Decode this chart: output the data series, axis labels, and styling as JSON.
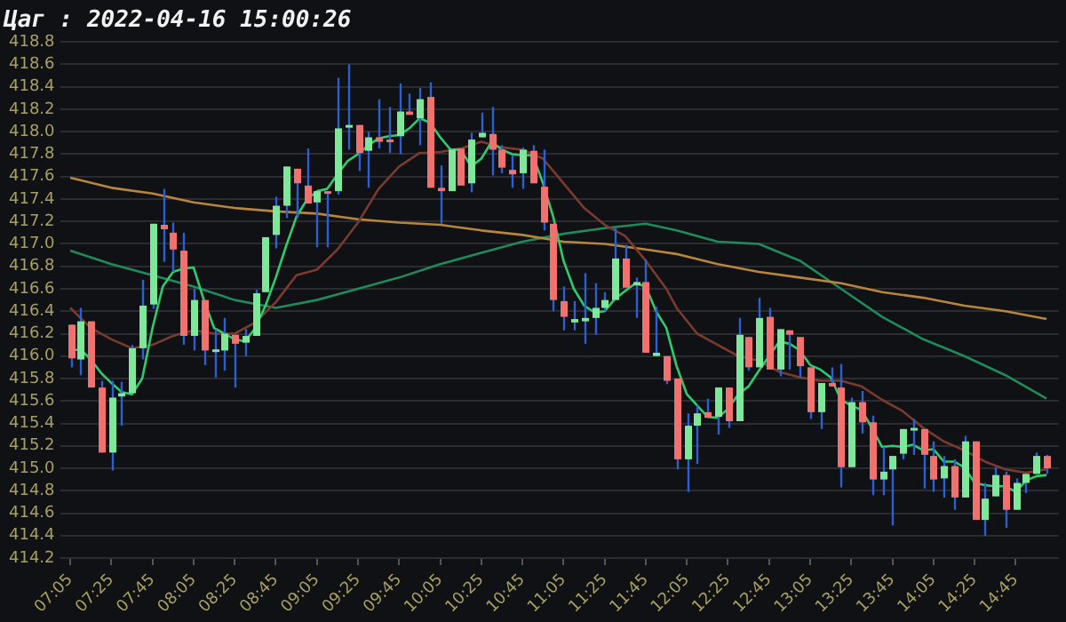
{
  "chart_data": {
    "type": "candlestick",
    "title": "Цаг : 2022-04-16 15:00:26",
    "x": [
      7.0833,
      7.1667,
      7.25,
      7.3333,
      7.4167,
      7.5,
      7.5833,
      7.6667,
      7.75,
      7.8333,
      7.9167,
      8,
      8.0833,
      8.1667,
      8.25,
      8.3333,
      8.4167,
      8.5,
      8.5833,
      8.6667,
      8.75,
      8.8333,
      8.9167,
      9,
      9.0833,
      9.1667,
      9.25,
      9.3333,
      9.4167,
      9.5,
      9.5833,
      9.6667,
      9.75,
      9.8333,
      9.9167,
      10,
      10.0833,
      10.1667,
      10.25,
      10.3333,
      10.4167,
      10.5,
      10.5833,
      10.6667,
      10.75,
      10.8333,
      10.9167,
      11,
      11.0833,
      11.1667,
      11.25,
      11.3333,
      11.4167,
      11.5,
      11.5833,
      11.6667,
      11.75,
      11.8333,
      11.9167,
      12,
      12.0833,
      12.1667,
      12.25,
      12.3333,
      12.4167,
      12.5,
      12.5833,
      12.6667,
      12.75,
      12.8333,
      12.9167,
      13,
      13.0833,
      13.1667,
      13.25,
      13.3333,
      13.4167,
      13.5,
      13.5833,
      13.6667,
      13.75,
      13.8333,
      13.9167,
      14,
      14.0833,
      14.1667,
      14.25,
      14.3333,
      14.4167,
      14.5,
      14.5833,
      14.6667,
      14.75,
      14.8333,
      14.9167,
      15
    ],
    "ohlc": [
      [
        416.28,
        416.28,
        415.9,
        415.98
      ],
      [
        415.97,
        416.43,
        415.83,
        416.31
      ],
      [
        416.31,
        416.31,
        415.72,
        415.72
      ],
      [
        415.72,
        415.78,
        415.14,
        415.14
      ],
      [
        415.14,
        415.78,
        414.98,
        415.63
      ],
      [
        415.64,
        415.77,
        415.38,
        415.67
      ],
      [
        415.67,
        416.1,
        415.67,
        416.07
      ],
      [
        416.07,
        416.68,
        415.97,
        416.45
      ],
      [
        416.46,
        417.18,
        416.42,
        417.18
      ],
      [
        417.17,
        417.49,
        416.84,
        417.13
      ],
      [
        417.1,
        417.19,
        416.75,
        416.95
      ],
      [
        416.94,
        417.1,
        416.1,
        416.18
      ],
      [
        416.18,
        416.6,
        416.05,
        416.5
      ],
      [
        416.5,
        416.5,
        415.92,
        416.05
      ],
      [
        416.04,
        416.24,
        415.81,
        416.06
      ],
      [
        416.05,
        416.34,
        415.87,
        416.2
      ],
      [
        416.19,
        416.19,
        415.72,
        416.11
      ],
      [
        416.12,
        416.24,
        416.0,
        416.18
      ],
      [
        416.18,
        416.59,
        416.18,
        416.56
      ],
      [
        416.57,
        417.06,
        416.57,
        417.06
      ],
      [
        417.08,
        417.42,
        416.96,
        417.34
      ],
      [
        417.34,
        417.69,
        417.23,
        417.69
      ],
      [
        417.67,
        417.67,
        417.23,
        417.54
      ],
      [
        417.52,
        417.85,
        417.36,
        417.36
      ],
      [
        417.37,
        417.47,
        416.97,
        417.47
      ],
      [
        417.47,
        417.47,
        416.97,
        417.45
      ],
      [
        417.47,
        418.48,
        417.44,
        418.03
      ],
      [
        418.04,
        418.6,
        417.84,
        418.06
      ],
      [
        418.06,
        418.06,
        417.65,
        417.81
      ],
      [
        417.83,
        418.0,
        417.5,
        417.95
      ],
      [
        417.95,
        418.29,
        417.85,
        417.91
      ],
      [
        417.93,
        418.22,
        417.81,
        417.91
      ],
      [
        417.96,
        418.43,
        417.8,
        418.18
      ],
      [
        418.18,
        418.34,
        418.15,
        418.15
      ],
      [
        418.12,
        418.39,
        417.88,
        418.29
      ],
      [
        418.31,
        418.44,
        417.5,
        417.5
      ],
      [
        417.5,
        417.7,
        417.18,
        417.47
      ],
      [
        417.47,
        417.84,
        417.47,
        417.84
      ],
      [
        417.85,
        417.85,
        417.52,
        417.52
      ],
      [
        417.54,
        417.99,
        417.46,
        417.93
      ],
      [
        417.95,
        418.17,
        417.95,
        417.99
      ],
      [
        417.98,
        418.22,
        417.61,
        417.84
      ],
      [
        417.84,
        417.88,
        417.63,
        417.68
      ],
      [
        417.66,
        417.79,
        417.5,
        417.62
      ],
      [
        417.63,
        417.86,
        417.49,
        417.84
      ],
      [
        417.83,
        417.88,
        417.54,
        417.54
      ],
      [
        417.51,
        417.84,
        417.12,
        417.19
      ],
      [
        417.18,
        417.18,
        416.4,
        416.5
      ],
      [
        416.49,
        416.62,
        416.23,
        416.35
      ],
      [
        416.3,
        416.49,
        416.23,
        416.33
      ],
      [
        416.31,
        416.74,
        416.11,
        416.34
      ],
      [
        416.34,
        416.65,
        416.19,
        416.43
      ],
      [
        416.43,
        416.57,
        416.4,
        416.5
      ],
      [
        416.5,
        417.14,
        416.5,
        416.87
      ],
      [
        416.87,
        416.99,
        416.61,
        416.61
      ],
      [
        416.63,
        416.7,
        416.34,
        416.66
      ],
      [
        416.66,
        416.86,
        416.03,
        416.03
      ],
      [
        416.0,
        416.44,
        416.0,
        416.03
      ],
      [
        416.0,
        416.0,
        415.75,
        415.78
      ],
      [
        415.8,
        415.8,
        414.99,
        415.08
      ],
      [
        415.08,
        415.49,
        414.79,
        415.38
      ],
      [
        415.38,
        415.56,
        415.04,
        415.49
      ],
      [
        415.5,
        415.62,
        415.45,
        415.45
      ],
      [
        415.46,
        415.72,
        415.3,
        415.72
      ],
      [
        415.72,
        415.72,
        415.36,
        415.42
      ],
      [
        415.42,
        416.34,
        415.42,
        416.19
      ],
      [
        416.17,
        416.17,
        415.87,
        415.9
      ],
      [
        415.9,
        416.52,
        415.9,
        416.34
      ],
      [
        416.35,
        416.43,
        415.88,
        415.88
      ],
      [
        415.88,
        416.24,
        415.82,
        416.24
      ],
      [
        416.23,
        416.23,
        415.88,
        416.19
      ],
      [
        416.17,
        416.17,
        415.81,
        415.91
      ],
      [
        415.9,
        415.9,
        415.44,
        415.5
      ],
      [
        415.5,
        415.76,
        415.35,
        415.76
      ],
      [
        415.76,
        415.9,
        415.73,
        415.73
      ],
      [
        415.72,
        415.93,
        414.83,
        415.01
      ],
      [
        415.01,
        415.63,
        415.01,
        415.59
      ],
      [
        415.59,
        415.69,
        415.31,
        415.41
      ],
      [
        415.41,
        415.47,
        414.76,
        414.9
      ],
      [
        414.9,
        415.19,
        414.76,
        414.97
      ],
      [
        414.99,
        415.11,
        414.49,
        415.11
      ],
      [
        415.13,
        415.35,
        415.08,
        415.35
      ],
      [
        415.34,
        415.44,
        415.12,
        415.36
      ],
      [
        415.35,
        415.35,
        414.82,
        415.12
      ],
      [
        415.11,
        415.24,
        414.79,
        414.9
      ],
      [
        414.91,
        415.11,
        414.74,
        415.02
      ],
      [
        415.02,
        415.08,
        414.63,
        414.74
      ],
      [
        414.74,
        415.29,
        414.74,
        415.24
      ],
      [
        415.24,
        415.24,
        414.54,
        414.54
      ],
      [
        414.54,
        414.87,
        414.4,
        414.73
      ],
      [
        414.75,
        415.01,
        414.75,
        414.94
      ],
      [
        414.94,
        414.97,
        414.47,
        414.63
      ],
      [
        414.63,
        414.91,
        414.63,
        414.87
      ],
      [
        414.87,
        414.95,
        414.78,
        414.95
      ],
      [
        414.95,
        415.14,
        414.95,
        415.11
      ],
      [
        415.11,
        415.12,
        414.95,
        415.0
      ]
    ],
    "series": [
      {
        "type": "line",
        "color": "#2ecc71",
        "values": [
          416.05,
          416.06,
          415.97,
          415.85,
          415.76,
          415.68,
          415.66,
          415.8,
          416.25,
          416.62,
          416.75,
          416.78,
          416.79,
          416.5,
          416.25,
          416.2,
          416.15,
          416.13,
          416.25,
          416.45,
          416.7,
          416.98,
          417.24,
          417.39,
          417.47,
          417.49,
          417.62,
          417.74,
          417.8,
          417.88,
          417.94,
          417.96,
          417.97,
          418.03,
          418.12,
          418.08,
          417.95,
          417.84,
          417.84,
          417.69,
          417.76,
          417.91,
          417.84,
          417.8,
          417.79,
          417.79,
          417.54,
          417.24,
          416.85,
          416.6,
          416.45,
          416.39,
          416.4,
          416.51,
          416.58,
          416.65,
          416.62,
          416.4,
          416.25,
          415.91,
          415.66,
          415.56,
          415.46,
          415.45,
          415.53,
          415.66,
          415.73,
          415.87,
          416.0,
          416.13,
          416.11,
          416.05,
          415.92,
          415.88,
          415.81,
          415.61,
          415.56,
          415.52,
          415.36,
          415.19,
          415.2,
          415.19,
          415.21,
          415.16,
          415.17,
          415.06,
          415.06,
          415.01,
          414.87,
          414.85,
          414.84,
          414.84,
          414.79,
          414.89,
          414.93,
          414.94
        ]
      },
      {
        "type": "line",
        "color": "#7a3b2e",
        "x": [
          7.0833,
          7.25,
          7.4167,
          7.5833,
          7.75,
          7.9167,
          8.0833,
          8.25,
          8.4167,
          8.5833,
          8.75,
          8.9167,
          9.0833,
          9.25,
          9.4167,
          9.5833,
          9.75,
          9.9167,
          10.0833,
          10.25,
          10.4167,
          10.5833,
          10.75,
          10.9167,
          11.0833,
          11.25,
          11.4167,
          11.5833,
          11.75,
          11.9167,
          12,
          12.1667,
          12.3333,
          12.5,
          12.6667,
          12.8333,
          13,
          13.1667,
          13.3333,
          13.5,
          13.6667,
          13.8333,
          14,
          14.1667,
          14.3333,
          14.5,
          14.6667,
          14.8333,
          15
        ],
        "values": [
          416.43,
          416.25,
          416.15,
          416.07,
          416.1,
          416.18,
          416.23,
          416.2,
          416.2,
          416.3,
          416.48,
          416.72,
          416.77,
          416.95,
          417.19,
          417.49,
          417.69,
          417.81,
          417.82,
          417.85,
          417.91,
          417.86,
          417.84,
          417.76,
          417.54,
          417.32,
          417.17,
          417.07,
          416.85,
          416.6,
          416.43,
          416.2,
          416.1,
          416.0,
          415.96,
          415.86,
          415.81,
          415.78,
          415.78,
          415.73,
          415.61,
          415.51,
          415.36,
          415.24,
          415.16,
          415.06,
          414.99,
          414.96,
          414.99
        ]
      },
      {
        "type": "line",
        "color": "#b8863b",
        "x": [
          7.0833,
          7.4167,
          7.75,
          8.0833,
          8.4167,
          8.75,
          9.0833,
          9.4167,
          9.75,
          10.0833,
          10.4167,
          10.75,
          11.0833,
          11.4167,
          11.75,
          12,
          12.3333,
          12.6667,
          13,
          13.3333,
          13.6667,
          14,
          14.3333,
          14.6667,
          15
        ],
        "values": [
          417.59,
          417.5,
          417.45,
          417.37,
          417.32,
          417.29,
          417.27,
          417.22,
          417.19,
          417.17,
          417.12,
          417.08,
          417.02,
          417.0,
          416.95,
          416.91,
          416.82,
          416.75,
          416.7,
          416.65,
          416.57,
          416.52,
          416.45,
          416.4,
          416.33
        ]
      },
      {
        "type": "line",
        "color": "#1f8a5a",
        "x": [
          7.0833,
          7.4167,
          7.75,
          8.0833,
          8.4167,
          8.75,
          9.0833,
          9.4167,
          9.75,
          10.0833,
          10.4167,
          10.75,
          11.0833,
          11.4167,
          11.75,
          12,
          12.3333,
          12.6667,
          13,
          13.3333,
          13.6667,
          14,
          14.3333,
          14.6667,
          15
        ],
        "values": [
          416.94,
          416.82,
          416.72,
          416.62,
          416.5,
          416.43,
          416.5,
          416.6,
          416.7,
          416.82,
          416.92,
          417.02,
          417.09,
          417.14,
          417.18,
          417.12,
          417.02,
          417.0,
          416.85,
          416.6,
          416.35,
          416.15,
          416.0,
          415.83,
          415.62
        ]
      }
    ],
    "xlim": [
      7.0,
      15.1
    ],
    "xticks": [
      {
        "value": 7.0833,
        "label": "07:05"
      },
      {
        "value": 7.4167,
        "label": "07:25"
      },
      {
        "value": 7.75,
        "label": "07:45"
      },
      {
        "value": 8.0833,
        "label": "08:05"
      },
      {
        "value": 8.4167,
        "label": "08:25"
      },
      {
        "value": 8.75,
        "label": "08:45"
      },
      {
        "value": 9.0833,
        "label": "09:05"
      },
      {
        "value": 9.4167,
        "label": "09:25"
      },
      {
        "value": 9.75,
        "label": "09:45"
      },
      {
        "value": 10.0833,
        "label": "10:05"
      },
      {
        "value": 10.4167,
        "label": "10:25"
      },
      {
        "value": 10.75,
        "label": "10:45"
      },
      {
        "value": 11.0833,
        "label": "11:05"
      },
      {
        "value": 11.4167,
        "label": "11:25"
      },
      {
        "value": 11.75,
        "label": "11:45"
      },
      {
        "value": 12.0833,
        "label": "12:05"
      },
      {
        "value": 12.4167,
        "label": "12:25"
      },
      {
        "value": 12.75,
        "label": "12:45"
      },
      {
        "value": 13.0833,
        "label": "13:05"
      },
      {
        "value": 13.4167,
        "label": "13:25"
      },
      {
        "value": 13.75,
        "label": "13:45"
      },
      {
        "value": 14.0833,
        "label": "14:05"
      },
      {
        "value": 14.4167,
        "label": "14:25"
      },
      {
        "value": 14.75,
        "label": "14:45"
      }
    ],
    "ylim": [
      414.2,
      418.8
    ],
    "yticks": [
      414.2,
      414.4,
      414.6,
      414.8,
      {
        "value": 415,
        "label": "415.0"
      },
      415.2,
      415.4,
      415.6,
      415.8,
      {
        "value": 416,
        "label": "416.0"
      },
      416.2,
      416.4,
      416.6,
      416.8,
      {
        "value": 417,
        "label": "417.0"
      },
      417.2,
      417.4,
      417.6,
      417.8,
      {
        "value": 418,
        "label": "418.0"
      },
      418.2,
      418.4,
      418.6,
      418.8
    ],
    "grid": "y",
    "marker": "none",
    "line_style": "solid"
  }
}
